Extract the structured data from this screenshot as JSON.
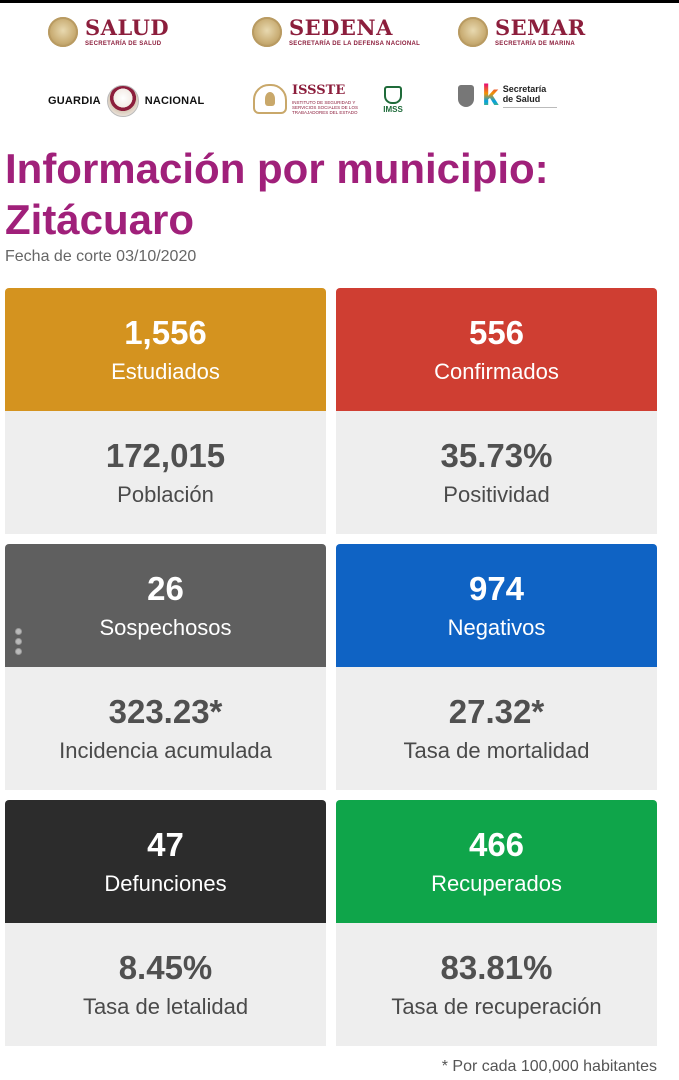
{
  "logos": {
    "salud": {
      "main": "SALUD",
      "sub": "SECRETARÍA DE SALUD"
    },
    "sedena": {
      "main": "SEDENA",
      "sub": "SECRETARÍA DE LA DEFENSA NACIONAL"
    },
    "semar": {
      "main": "SEMAR",
      "sub": "SECRETARÍA DE MARINA"
    },
    "guardia": {
      "left": "GUARDIA",
      "right": "NACIONAL"
    },
    "issste": {
      "main": "ISSSTE",
      "sub": "INSTITUTO DE SEGURIDAD Y SERVICIOS SOCIALES DE LOS TRABAJADORES DEL ESTADO"
    },
    "imss": {
      "label": "IMSS"
    },
    "secretaria_salud": {
      "line1": "Secretaría",
      "line2": "de Salud"
    }
  },
  "header": {
    "title": "Información por municipio: Zitácuaro",
    "date": "Fecha de corte 03/10/2020"
  },
  "cards": [
    {
      "top_value": "1,556",
      "top_label": "Estudiados",
      "top_color": "#d4931f",
      "bottom_value": "172,015",
      "bottom_label": "Población"
    },
    {
      "top_value": "556",
      "top_label": "Confirmados",
      "top_color": "#cf3e32",
      "bottom_value": "35.73%",
      "bottom_label": "Positividad"
    },
    {
      "top_value": "26",
      "top_label": "Sospechosos",
      "top_color": "#5f5f5f",
      "bottom_value": "323.23*",
      "bottom_label": "Incidencia acumulada"
    },
    {
      "top_value": "974",
      "top_label": "Negativos",
      "top_color": "#0f63c4",
      "bottom_value": "27.32*",
      "bottom_label": "Tasa de mortalidad"
    },
    {
      "top_value": "47",
      "top_label": "Defunciones",
      "top_color": "#2c2c2c",
      "bottom_value": "8.45%",
      "bottom_label": "Tasa de letalidad"
    },
    {
      "top_value": "466",
      "top_label": "Recuperados",
      "top_color": "#0fa54a",
      "bottom_value": "83.81%",
      "bottom_label": "Tasa de recuperación"
    }
  ],
  "footnote": "* Por cada 100,000 habitantes"
}
